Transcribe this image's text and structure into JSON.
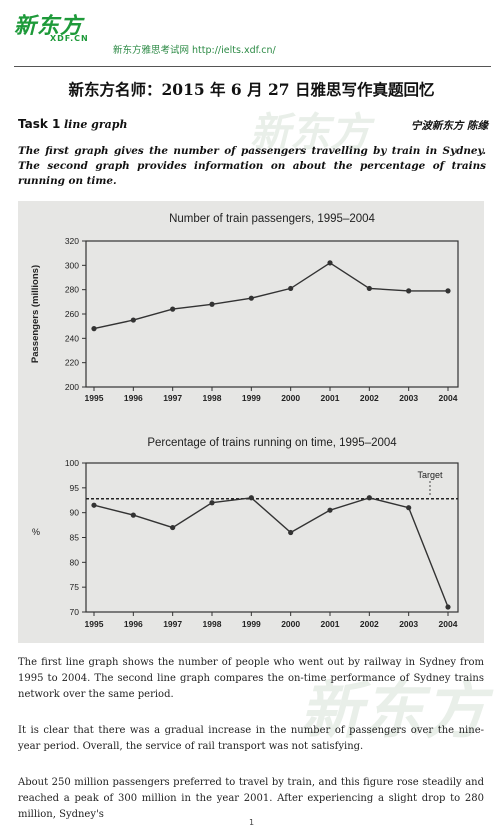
{
  "header": {
    "logo_text": "新东方",
    "logo_sub": "XDF.CN",
    "site_text": "新东方雅思考试网 http://ielts.xdf.cn/"
  },
  "doc_title": "新东方名师：2015 年 6 月 27 日雅思写作真题回忆",
  "task": {
    "label": "Task 1",
    "type": "line graph",
    "author": "宁波新东方 陈缘"
  },
  "prompt": "The first graph gives the number of passengers travelling by train in Sydney. The second graph provides information on about the percentage of trains running on time.",
  "paragraphs": [
    "The first line graph shows the number of people who went out by railway in Sydney from 1995 to 2004. The second line graph compares the on-time performance of Sydney trains network over the same period.",
    "It is clear that there was a gradual increase in the number of passengers over the nine-year period. Overall, the service of rail transport was not satisfying.",
    "About 250 million passengers preferred to travel by train, and this figure rose steadily and reached a peak of 300 million in the year 2001. After experiencing a slight drop to 280 million, Sydney's"
  ],
  "page_number": "1",
  "watermark_text": "新东方",
  "colors": {
    "brand_green": "#1e9a3a",
    "line": "#333333",
    "figure_bg": "#e6e6e4"
  },
  "chart_data": [
    {
      "type": "line",
      "title": "Number of train passengers, 1995–2004",
      "ylabel": "Passengers (millions)",
      "xlabel": "",
      "x": [
        "1995",
        "1996",
        "1997",
        "1998",
        "1999",
        "2000",
        "2001",
        "2002",
        "2003",
        "2004"
      ],
      "values": [
        248,
        255,
        264,
        268,
        273,
        281,
        302,
        281,
        279,
        279
      ],
      "ylim": [
        200,
        320
      ],
      "yticks": [
        200,
        220,
        240,
        260,
        280,
        300,
        320
      ],
      "grid": false
    },
    {
      "type": "line",
      "title": "Percentage of trains running on time, 1995–2004",
      "ylabel": "%",
      "xlabel": "",
      "x": [
        "1995",
        "1996",
        "1997",
        "1998",
        "1999",
        "2000",
        "2001",
        "2002",
        "2003",
        "2004"
      ],
      "values": [
        91.5,
        89.5,
        87,
        92,
        93,
        86,
        90.5,
        93,
        91,
        71
      ],
      "ylim": [
        70,
        100
      ],
      "yticks": [
        70,
        75,
        80,
        85,
        90,
        95,
        100
      ],
      "target_label": "Target",
      "target_value": 92.8,
      "grid": false
    }
  ]
}
